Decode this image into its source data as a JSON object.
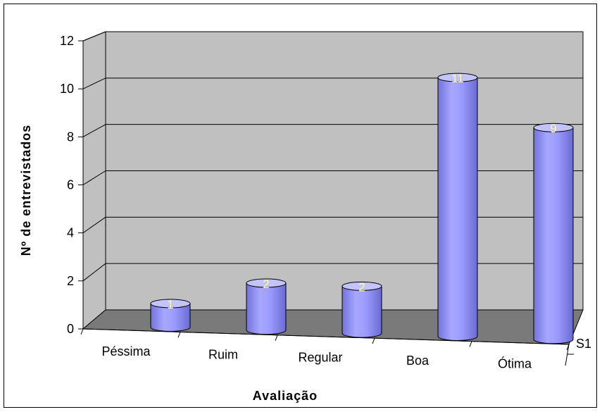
{
  "chart_data": {
    "type": "bar",
    "style": "3d-cylinder",
    "categories": [
      "Péssima",
      "Ruim",
      "Regular",
      "Boa",
      "Ótima"
    ],
    "series": [
      {
        "name": "S1",
        "values": [
          1,
          2,
          2,
          11,
          9
        ]
      }
    ],
    "data_labels": [
      "1",
      "2",
      "2",
      "11",
      "9"
    ],
    "xlabel": "Avaliação",
    "ylabel": "Nº de entrevistados",
    "ylim": [
      0,
      12
    ],
    "yticks": [
      "0",
      "2",
      "4",
      "6",
      "8",
      "10",
      "12"
    ],
    "depth_label": "S1",
    "grid": true,
    "colors": {
      "bar_fill": "#9999ff",
      "bar_dark": "#6c6cd6",
      "bar_light": "#c3c3ff",
      "wall": "#c0c0c0",
      "floor": "#7a7a7a",
      "data_label": "#ffff99"
    }
  }
}
